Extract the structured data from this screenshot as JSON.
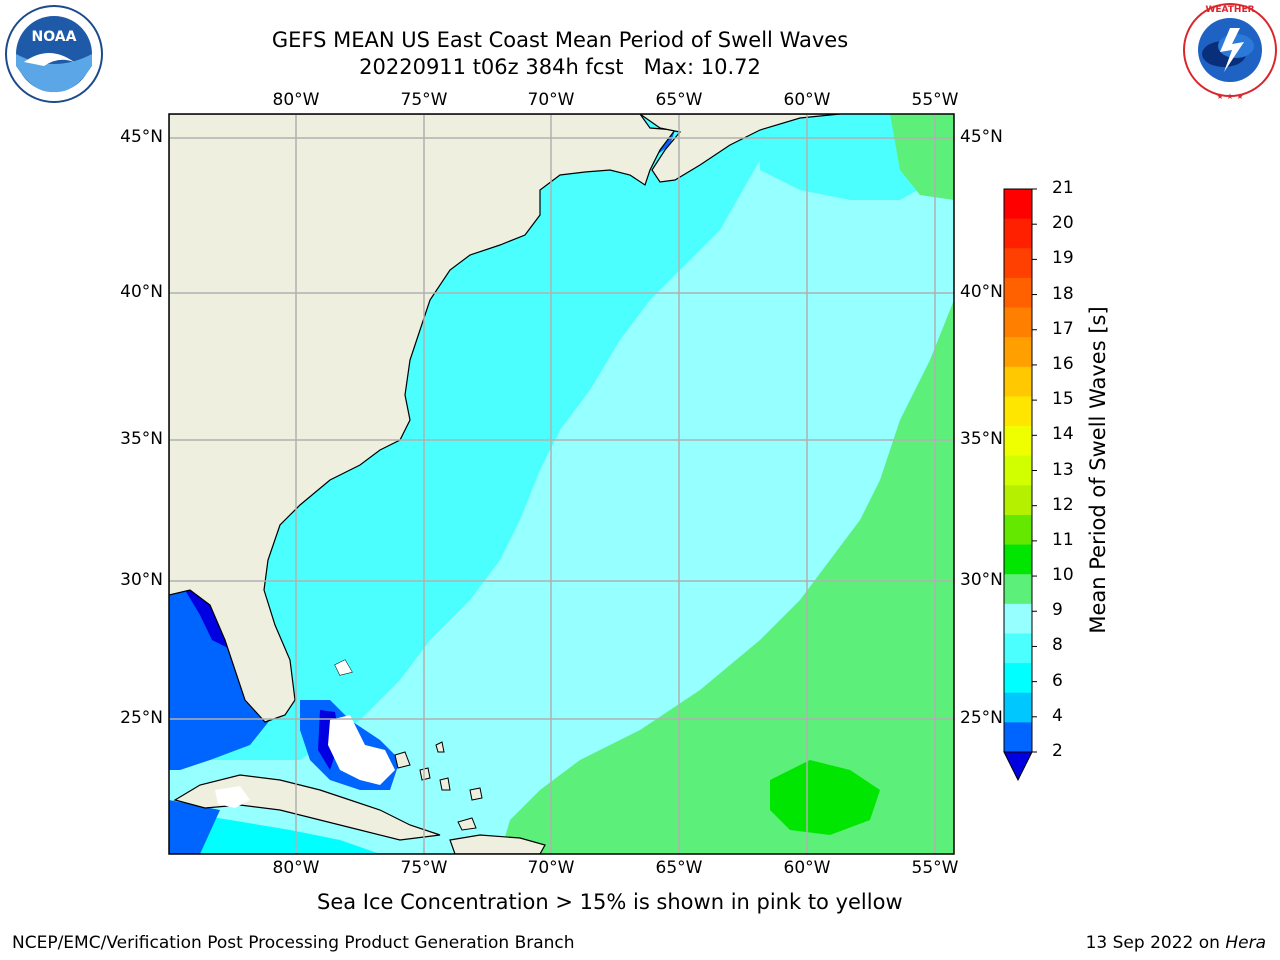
{
  "title_line1": "GEFS MEAN US East Coast Mean Period of Swell Waves",
  "title_line2": "20220911 t06z 384h fcst   Max: 10.72",
  "lon_labels": [
    "80°W",
    "75°W",
    "70°W",
    "65°W",
    "60°W",
    "55°W"
  ],
  "lat_labels": [
    "45°N",
    "40°N",
    "35°N",
    "30°N",
    "25°N"
  ],
  "colorbar": {
    "label": "Mean Period of Swell Waves [s]",
    "ticks": [
      "21",
      "20",
      "19",
      "18",
      "17",
      "16",
      "15",
      "14",
      "13",
      "12",
      "11",
      "10",
      "9",
      "8",
      "6",
      "4",
      "2"
    ],
    "colors": [
      "#ff0000",
      "#ff2000",
      "#ff4000",
      "#ff6000",
      "#ff8000",
      "#ffa000",
      "#ffc800",
      "#ffe600",
      "#f0ff00",
      "#d2ff00",
      "#b4f000",
      "#64e800",
      "#00e600",
      "#5cf07a",
      "#96ffff",
      "#4cffff",
      "#00ffff",
      "#00c8ff",
      "#0064ff",
      "#0000e0"
    ]
  },
  "note": "Sea Ice Concentration > 15% is shown in pink to yellow",
  "credit": "NCEP/EMC/Verification Post Processing Product Generation Branch",
  "date_prefix": "13 Sep 2022 on ",
  "date_host": "Hera",
  "logos": {
    "left": "NOAA",
    "right": "NATIONAL WEATHER SERVICE"
  }
}
